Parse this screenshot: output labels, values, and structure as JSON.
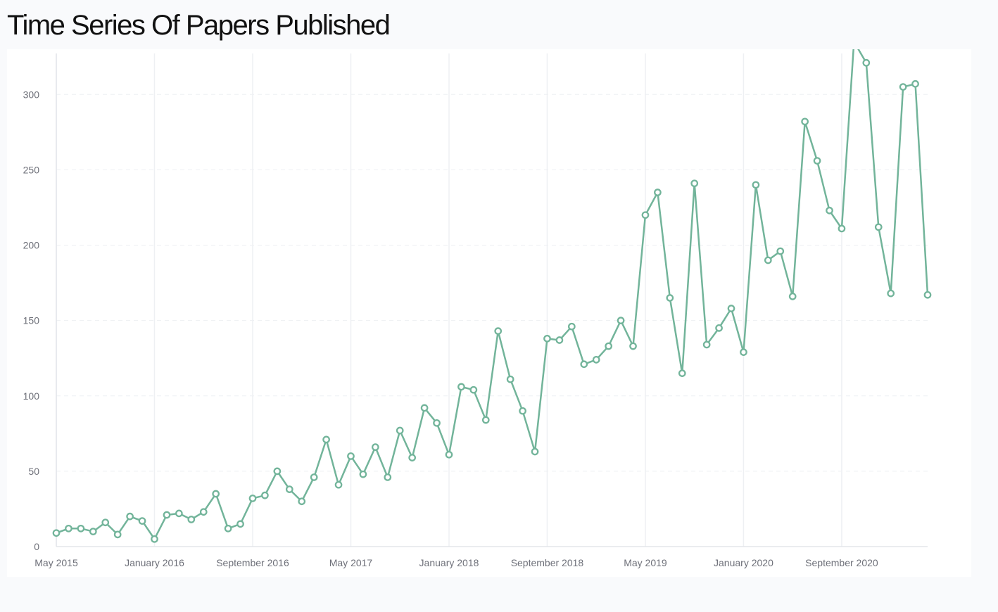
{
  "page": {
    "title": "Time Series Of Papers Published"
  },
  "colors": {
    "line": "#72b49a",
    "grid": "#eef0f3",
    "axis": "#e3e6ea",
    "tick_text": "#6e7079",
    "background": "#f9fafc",
    "card": "#ffffff"
  },
  "chart_data": {
    "type": "line",
    "title": "",
    "xlabel": "",
    "ylabel": "",
    "x_range": [
      "2015-05",
      "2021-04"
    ],
    "ylim": [
      0,
      330
    ],
    "y_ticks": [
      0,
      50,
      100,
      150,
      200,
      250,
      300
    ],
    "x_ticks": [
      {
        "date": "2015-05",
        "label": "May 2015"
      },
      {
        "date": "2016-01",
        "label": "January 2016"
      },
      {
        "date": "2016-09",
        "label": "September 2016"
      },
      {
        "date": "2017-05",
        "label": "May 2017"
      },
      {
        "date": "2018-01",
        "label": "January 2018"
      },
      {
        "date": "2018-09",
        "label": "September 2018"
      },
      {
        "date": "2019-05",
        "label": "May 2019"
      },
      {
        "date": "2020-01",
        "label": "January 2020"
      },
      {
        "date": "2020-09",
        "label": "September 2020"
      }
    ],
    "grid": {
      "horizontal": "dashed",
      "vertical": "solid"
    },
    "x": [
      "2015-05",
      "2015-06",
      "2015-07",
      "2015-08",
      "2015-09",
      "2015-10",
      "2015-11",
      "2015-12",
      "2016-01",
      "2016-02",
      "2016-03",
      "2016-04",
      "2016-05",
      "2016-06",
      "2016-07",
      "2016-08",
      "2016-09",
      "2016-10",
      "2016-11",
      "2016-12",
      "2017-01",
      "2017-02",
      "2017-03",
      "2017-04",
      "2017-05",
      "2017-06",
      "2017-07",
      "2017-08",
      "2017-09",
      "2017-10",
      "2017-11",
      "2017-12",
      "2018-01",
      "2018-02",
      "2018-03",
      "2018-04",
      "2018-05",
      "2018-06",
      "2018-07",
      "2018-08",
      "2018-09",
      "2018-10",
      "2018-11",
      "2018-12",
      "2019-01",
      "2019-02",
      "2019-03",
      "2019-04",
      "2019-05",
      "2019-06",
      "2019-07",
      "2019-08",
      "2019-09",
      "2019-10",
      "2019-11",
      "2019-12",
      "2020-01",
      "2020-02",
      "2020-03",
      "2020-04",
      "2020-05",
      "2020-06",
      "2020-07",
      "2020-08",
      "2020-09",
      "2020-10",
      "2020-11",
      "2020-12",
      "2021-01",
      "2021-02",
      "2021-03",
      "2021-04"
    ],
    "series": [
      {
        "values": [
          9,
          12,
          12,
          10,
          16,
          8,
          20,
          17,
          5,
          21,
          22,
          18,
          23,
          35,
          12,
          15,
          32,
          34,
          50,
          38,
          30,
          46,
          71,
          41,
          60,
          48,
          66,
          46,
          77,
          59,
          92,
          82,
          61,
          106,
          104,
          84,
          143,
          111,
          90,
          63,
          138,
          137,
          146,
          121,
          124,
          133,
          150,
          133,
          220,
          235,
          165,
          115,
          241,
          134,
          145,
          158,
          129,
          240,
          190,
          196,
          166,
          282,
          256,
          223,
          211,
          335,
          321,
          212,
          168,
          305,
          307,
          167
        ]
      }
    ]
  }
}
